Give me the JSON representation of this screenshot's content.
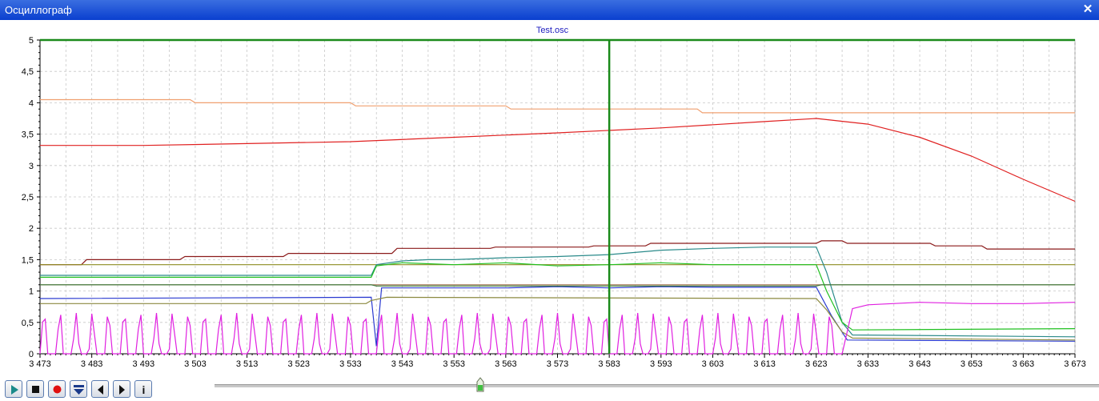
{
  "window": {
    "title": "Осциллограф",
    "close_icon": "close-icon"
  },
  "chart_data": {
    "type": "line",
    "title": "Test.osc",
    "xlabel": "",
    "ylabel": "",
    "xlim": [
      3473,
      3673
    ],
    "ylim": [
      0,
      5
    ],
    "x_ticks": [
      3473,
      3483,
      3493,
      3503,
      3513,
      3523,
      3533,
      3543,
      3553,
      3563,
      3573,
      3583,
      3593,
      3603,
      3613,
      3623,
      3633,
      3643,
      3653,
      3663,
      3673
    ],
    "x_tick_labels": [
      "3 473",
      "3 483",
      "3 493",
      "3 503",
      "3 513",
      "3 523",
      "3 533",
      "3 543",
      "3 553",
      "3 563",
      "3 573",
      "3 583",
      "3 593",
      "3 603",
      "3 613",
      "3 623",
      "3 633",
      "3 643",
      "3 653",
      "3 663",
      "3 673"
    ],
    "y_ticks": [
      0,
      0.5,
      1,
      1.5,
      2,
      2.5,
      3,
      3.5,
      4,
      4.5,
      5
    ],
    "y_tick_labels": [
      "0",
      "0,5",
      "1",
      "1,5",
      "2",
      "2,5",
      "3",
      "3,5",
      "4",
      "4,5",
      "5"
    ],
    "grid": true,
    "cursor_x": 3583,
    "series": [
      {
        "color": "#f0a070",
        "points": [
          [
            3473,
            4.05
          ],
          [
            3502,
            4.05
          ],
          [
            3503,
            4.0
          ],
          [
            3533,
            4.0
          ],
          [
            3534,
            3.95
          ],
          [
            3563,
            3.95
          ],
          [
            3564,
            3.9
          ],
          [
            3600,
            3.9
          ],
          [
            3601,
            3.84
          ],
          [
            3673,
            3.84
          ]
        ]
      },
      {
        "color": "#e02020",
        "points": [
          [
            3473,
            3.32
          ],
          [
            3493,
            3.32
          ],
          [
            3513,
            3.35
          ],
          [
            3533,
            3.38
          ],
          [
            3553,
            3.45
          ],
          [
            3573,
            3.52
          ],
          [
            3593,
            3.6
          ],
          [
            3613,
            3.7
          ],
          [
            3623,
            3.75
          ],
          [
            3633,
            3.66
          ],
          [
            3643,
            3.45
          ],
          [
            3653,
            3.15
          ],
          [
            3663,
            2.78
          ],
          [
            3673,
            2.43
          ]
        ]
      },
      {
        "color": "#8b1a1a",
        "points": [
          [
            3473,
            1.42
          ],
          [
            3481,
            1.42
          ],
          [
            3482,
            1.5
          ],
          [
            3500,
            1.5
          ],
          [
            3501,
            1.55
          ],
          [
            3520,
            1.55
          ],
          [
            3521,
            1.6
          ],
          [
            3541,
            1.6
          ],
          [
            3542,
            1.68
          ],
          [
            3560,
            1.68
          ],
          [
            3561,
            1.7
          ],
          [
            3579,
            1.7
          ],
          [
            3580,
            1.72
          ],
          [
            3590,
            1.72
          ],
          [
            3591,
            1.76
          ],
          [
            3623,
            1.76
          ],
          [
            3624,
            1.8
          ],
          [
            3628,
            1.8
          ],
          [
            3629,
            1.76
          ],
          [
            3645,
            1.76
          ],
          [
            3646,
            1.72
          ],
          [
            3655,
            1.72
          ],
          [
            3656,
            1.67
          ],
          [
            3673,
            1.67
          ]
        ]
      },
      {
        "color": "#8c8c20",
        "points": [
          [
            3473,
            1.42
          ],
          [
            3673,
            1.42
          ]
        ]
      },
      {
        "color": "#a07050",
        "points": [
          [
            3473,
            1.1
          ],
          [
            3673,
            1.1
          ]
        ]
      },
      {
        "color": "#2a8a8a",
        "points": [
          [
            3473,
            1.25
          ],
          [
            3537,
            1.25
          ],
          [
            3538,
            1.42
          ],
          [
            3543,
            1.48
          ],
          [
            3548,
            1.5
          ],
          [
            3553,
            1.5
          ],
          [
            3563,
            1.53
          ],
          [
            3573,
            1.55
          ],
          [
            3583,
            1.58
          ],
          [
            3593,
            1.65
          ],
          [
            3603,
            1.68
          ],
          [
            3613,
            1.7
          ],
          [
            3623,
            1.7
          ],
          [
            3625,
            1.3
          ],
          [
            3628,
            0.5
          ],
          [
            3630,
            0.3
          ],
          [
            3673,
            0.27
          ]
        ]
      },
      {
        "color": "#20c020",
        "points": [
          [
            3473,
            1.22
          ],
          [
            3537,
            1.22
          ],
          [
            3538,
            1.4
          ],
          [
            3543,
            1.45
          ],
          [
            3553,
            1.42
          ],
          [
            3563,
            1.45
          ],
          [
            3573,
            1.4
          ],
          [
            3583,
            1.42
          ],
          [
            3593,
            1.45
          ],
          [
            3603,
            1.42
          ],
          [
            3613,
            1.42
          ],
          [
            3623,
            1.42
          ],
          [
            3625,
            1.0
          ],
          [
            3628,
            0.5
          ],
          [
            3630,
            0.38
          ],
          [
            3673,
            0.4
          ]
        ]
      },
      {
        "color": "#2a3ad0",
        "points": [
          [
            3473,
            0.88
          ],
          [
            3537,
            0.9
          ],
          [
            3538,
            0.12
          ],
          [
            3539,
            1.05
          ],
          [
            3553,
            1.05
          ],
          [
            3563,
            1.05
          ],
          [
            3573,
            1.07
          ],
          [
            3583,
            1.05
          ],
          [
            3593,
            1.07
          ],
          [
            3603,
            1.06
          ],
          [
            3613,
            1.06
          ],
          [
            3623,
            1.06
          ],
          [
            3626,
            0.6
          ],
          [
            3629,
            0.22
          ],
          [
            3673,
            0.2
          ]
        ]
      },
      {
        "color": "#3a7a3a",
        "points": [
          [
            3473,
            1.1
          ],
          [
            3537,
            1.1
          ],
          [
            3538,
            1.08
          ],
          [
            3623,
            1.08
          ],
          [
            3624,
            1.1
          ],
          [
            3673,
            1.1
          ]
        ]
      },
      {
        "color": "#8c8a40",
        "points": [
          [
            3473,
            0.8
          ],
          [
            3536,
            0.8
          ],
          [
            3537,
            0.85
          ],
          [
            3540,
            0.9
          ],
          [
            3623,
            0.88
          ],
          [
            3625,
            0.7
          ],
          [
            3628,
            0.35
          ],
          [
            3630,
            0.25
          ],
          [
            3673,
            0.22
          ]
        ]
      },
      {
        "color": "#e020e0",
        "points": []
      }
    ]
  },
  "controls": {
    "play_icon": "play-icon",
    "stop_icon": "stop-icon",
    "record_icon": "record-icon",
    "down_icon": "download-icon",
    "prev_icon": "prev-icon",
    "next_icon": "next-icon",
    "info_icon": "info-icon",
    "info_label": "i"
  },
  "slider": {
    "position_fraction": 0.3
  }
}
